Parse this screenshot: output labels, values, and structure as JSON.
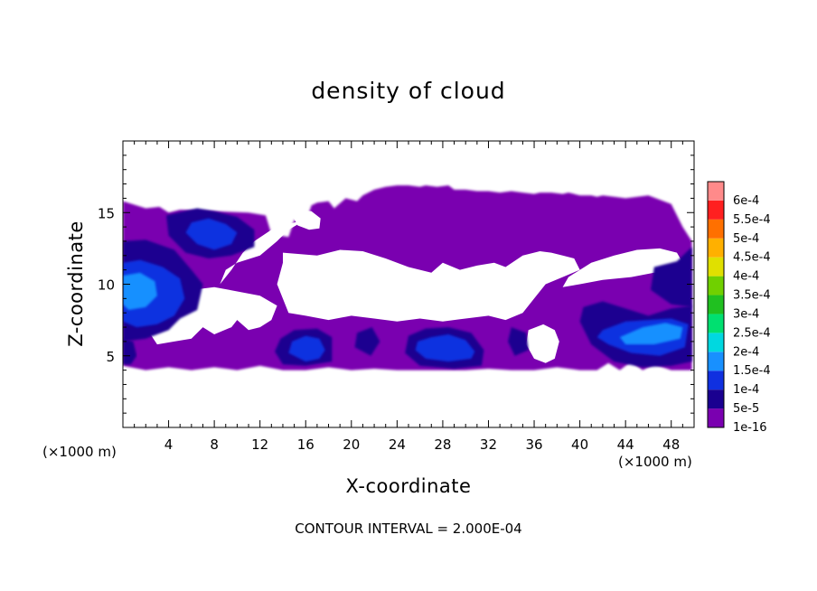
{
  "chart_data": {
    "type": "heatmap",
    "title": "density of cloud",
    "xlabel": "X-coordinate",
    "ylabel": "Z-coordinate",
    "x_unit_label": "(×1000 m)",
    "footer": "CONTOUR INTERVAL = 2.000E-04",
    "xlim": [
      0,
      50
    ],
    "ylim": [
      0,
      20
    ],
    "x_ticks": [
      4,
      8,
      12,
      16,
      20,
      24,
      28,
      32,
      36,
      40,
      44,
      48
    ],
    "y_ticks": [
      5,
      10,
      15
    ],
    "colorbar": {
      "levels": [
        "1e-16",
        "5e-5",
        "1e-4",
        "1.5e-4",
        "2e-4",
        "2.5e-4",
        "3e-4",
        "3.5e-4",
        "4e-4",
        "4.5e-4",
        "5e-4",
        "5.5e-4",
        "6e-4"
      ],
      "colors": [
        "#7a00b0",
        "#1a0090",
        "#1030e0",
        "#1890ff",
        "#00d8e0",
        "#00e070",
        "#20c020",
        "#70d000",
        "#e0e000",
        "#ffb000",
        "#ff7000",
        "#ff2020",
        "#ff8a8a"
      ]
    },
    "regions": [
      {
        "level": "1e-16",
        "x": [
          0.0,
          2.0,
          3.2,
          4.0,
          5.0,
          8.0,
          11.0,
          12.5,
          13.0,
          14.5,
          15.0,
          16.0,
          16.5,
          17.0,
          18.0,
          18.5,
          19.5,
          20.5,
          21.0,
          22.0,
          23.0,
          24.0,
          25.0,
          26.0,
          26.5,
          27.5,
          28.5,
          29.0,
          30.0,
          31.0,
          32.0,
          33.0,
          34.0,
          35.0,
          36.0,
          36.5,
          37.5,
          38.5,
          39.0,
          40.0,
          41.0,
          41.5,
          42.0,
          43.0,
          44.0,
          46.0,
          48.0,
          49.0,
          49.8,
          49.8,
          48.0,
          46.5,
          45.5,
          44.5,
          43.5,
          42.5,
          41.5,
          40.0,
          38.0,
          36.0,
          34.0,
          32.0,
          30.0,
          28.0,
          26.0,
          24.0,
          22.0,
          20.0,
          18.0,
          16.0,
          14.0,
          12.0,
          10.0,
          8.0,
          6.0,
          4.0,
          2.0,
          0.0
        ],
        "y": [
          15.8,
          15.3,
          15.4,
          15.0,
          15.2,
          15.1,
          15.0,
          14.8,
          13.5,
          13.3,
          14.5,
          14.3,
          15.5,
          15.7,
          15.8,
          15.3,
          16.0,
          15.8,
          16.2,
          16.6,
          16.8,
          16.9,
          16.9,
          16.8,
          16.9,
          16.8,
          16.9,
          16.6,
          16.6,
          16.5,
          16.5,
          16.4,
          16.5,
          16.4,
          16.3,
          16.4,
          16.4,
          16.3,
          16.4,
          16.2,
          16.2,
          16.1,
          16.2,
          16.1,
          16.0,
          16.2,
          15.6,
          14.0,
          13.0,
          4.0,
          4.0,
          4.4,
          4.0,
          4.6,
          4.0,
          4.5,
          4.0,
          4.0,
          4.2,
          4.0,
          4.0,
          4.1,
          4.0,
          4.0,
          4.0,
          4.0,
          4.1,
          4.0,
          4.2,
          4.0,
          4.0,
          4.3,
          4.0,
          4.2,
          4.0,
          4.2,
          4.0,
          4.3
        ]
      },
      {
        "level": "white",
        "x": [
          2.0,
          5.0,
          8.0,
          12.0,
          13.5,
          13.0,
          12.0,
          11.0,
          10.0,
          9.5,
          8.0,
          7.0,
          6.0,
          4.5,
          3.0,
          2.0
        ],
        "y": [
          9.0,
          9.5,
          9.8,
          9.2,
          8.5,
          7.5,
          7.0,
          6.8,
          7.5,
          7.0,
          6.5,
          7.0,
          6.2,
          6.0,
          5.8,
          7.0
        ]
      },
      {
        "level": "white",
        "x": [
          10.0,
          12.0,
          13.5,
          14.5,
          16.0,
          14.5,
          13.0,
          11.5,
          10.5,
          9.5,
          8.5,
          9.0
        ],
        "y": [
          11.5,
          12.0,
          13.0,
          13.8,
          14.5,
          14.2,
          13.8,
          13.0,
          12.2,
          11.0,
          10.0,
          11.0
        ]
      },
      {
        "level": "white",
        "x": [
          14.0,
          17.0,
          19.0,
          21.0,
          23.0,
          25.0,
          27.0,
          28.0,
          29.5,
          31.0,
          32.5,
          33.5,
          35.0,
          36.5,
          37.5,
          38.5,
          39.5,
          40.0,
          38.5,
          37.0,
          36.0,
          35.0,
          33.5,
          32.0,
          30.0,
          28.0,
          26.0,
          24.0,
          22.0,
          20.0,
          18.0,
          16.0,
          14.5,
          13.5,
          14.0
        ],
        "y": [
          12.2,
          12.0,
          12.4,
          12.3,
          11.8,
          11.2,
          10.8,
          11.5,
          11.0,
          11.3,
          11.5,
          11.2,
          12.0,
          12.3,
          12.2,
          12.0,
          11.8,
          11.0,
          10.5,
          10.0,
          9.0,
          8.0,
          7.5,
          7.8,
          7.6,
          7.4,
          7.6,
          7.4,
          7.6,
          7.8,
          7.5,
          7.8,
          8.0,
          10.0,
          11.5
        ]
      },
      {
        "level": "white",
        "x": [
          20.5,
          23.5,
          27.0,
          29.0,
          31.0,
          33.0,
          34.0,
          32.0,
          30.0,
          28.0,
          27.0,
          25.0,
          23.0,
          21.0,
          19.5,
          19.0
        ],
        "y": [
          11.0,
          10.8,
          10.0,
          10.2,
          10.8,
          10.5,
          9.0,
          8.2,
          8.0,
          8.4,
          9.4,
          9.0,
          9.0,
          8.8,
          9.2,
          10.2
        ]
      },
      {
        "level": "white",
        "x": [
          39.0,
          41.0,
          43.0,
          45.0,
          47.0,
          48.5,
          49.0,
          48.0,
          46.5,
          44.5,
          42.0,
          40.0,
          38.5
        ],
        "y": [
          10.5,
          11.5,
          12.0,
          12.4,
          12.5,
          12.2,
          11.5,
          10.5,
          10.8,
          10.5,
          10.3,
          10.0,
          9.8
        ]
      },
      {
        "level": "white",
        "x": [
          35.5,
          36.8,
          37.8,
          38.2,
          37.8,
          37.0,
          36.0,
          35.3
        ],
        "y": [
          6.8,
          7.2,
          6.8,
          6.0,
          4.8,
          4.5,
          4.8,
          5.8
        ]
      },
      {
        "level": "white",
        "x": [
          15.3,
          16.5,
          17.3,
          17.2,
          16.3,
          15.3,
          14.9
        ],
        "y": [
          15.2,
          15.1,
          14.6,
          13.9,
          13.8,
          14.1,
          14.7
        ]
      },
      {
        "level": "white",
        "x": [
          31.0,
          32.5,
          33.2,
          32.6,
          31.3,
          30.6
        ],
        "y": [
          9.6,
          9.8,
          9.2,
          8.4,
          8.5,
          9.0
        ]
      },
      {
        "level": "5e-5",
        "x": [
          0.0,
          2.0,
          4.5,
          6.0,
          7.0,
          6.5,
          5.0,
          4.0,
          2.0,
          0.0
        ],
        "y": [
          13.0,
          13.1,
          12.4,
          11.0,
          10.0,
          8.2,
          7.6,
          6.8,
          6.2,
          6.0
        ]
      },
      {
        "level": "5e-5",
        "x": [
          3.8,
          6.5,
          8.0,
          10.0,
          11.5,
          11.5,
          9.5,
          7.5,
          5.5,
          4.0
        ],
        "y": [
          14.8,
          15.3,
          15.1,
          14.7,
          13.8,
          12.6,
          12.0,
          11.8,
          12.2,
          13.4
        ]
      },
      {
        "level": "5e-5",
        "x": [
          13.8,
          15.0,
          17.0,
          18.3,
          18.3,
          16.0,
          14.0,
          13.3
        ],
        "y": [
          6.2,
          6.8,
          6.9,
          6.3,
          4.6,
          4.3,
          4.4,
          5.3
        ]
      },
      {
        "level": "5e-5",
        "x": [
          25.0,
          26.5,
          28.5,
          30.5,
          31.6,
          31.4,
          29.0,
          26.0,
          24.7
        ],
        "y": [
          6.4,
          6.9,
          7.0,
          6.6,
          5.4,
          4.3,
          4.1,
          4.3,
          5.2
        ]
      },
      {
        "level": "5e-5",
        "x": [
          40.3,
          42.0,
          44.0,
          46.0,
          48.0,
          49.8,
          49.8,
          48.0,
          45.5,
          43.0,
          41.0,
          40.0
        ],
        "y": [
          8.4,
          8.8,
          8.3,
          7.8,
          8.3,
          8.5,
          4.6,
          4.3,
          4.2,
          4.6,
          5.8,
          7.4
        ]
      },
      {
        "level": "5e-5",
        "x": [
          46.5,
          48.5,
          49.8,
          49.8,
          48.0,
          46.2
        ],
        "y": [
          11.2,
          11.6,
          12.6,
          8.4,
          8.6,
          9.6
        ]
      },
      {
        "level": "5e-5",
        "x": [
          0.0,
          0.9,
          1.2,
          0.7,
          0.0
        ],
        "y": [
          6.2,
          6.0,
          5.0,
          4.4,
          4.4
        ]
      },
      {
        "level": "5e-5",
        "x": [
          20.5,
          21.8,
          22.5,
          21.7,
          20.3
        ],
        "y": [
          6.6,
          7.0,
          6.0,
          5.0,
          5.6
        ]
      },
      {
        "level": "5e-5",
        "x": [
          34.0,
          35.3,
          35.5,
          34.3,
          33.7
        ],
        "y": [
          7.0,
          6.6,
          5.4,
          5.0,
          6.0
        ]
      },
      {
        "level": "1e-4",
        "x": [
          0.0,
          1.5,
          3.5,
          5.0,
          5.4,
          4.5,
          3.0,
          1.2,
          0.0
        ],
        "y": [
          11.5,
          11.7,
          11.2,
          10.4,
          9.0,
          7.8,
          7.2,
          7.0,
          7.4
        ]
      },
      {
        "level": "1e-4",
        "x": [
          6.0,
          7.5,
          9.0,
          10.0,
          9.5,
          8.0,
          6.5,
          5.5
        ],
        "y": [
          14.3,
          14.6,
          14.2,
          13.6,
          12.8,
          12.4,
          12.8,
          13.6
        ]
      },
      {
        "level": "1e-4",
        "x": [
          14.8,
          16.0,
          17.2,
          17.7,
          17.2,
          16.0,
          14.5
        ],
        "y": [
          6.0,
          6.4,
          6.2,
          5.4,
          4.8,
          4.6,
          5.2
        ]
      },
      {
        "level": "1e-4",
        "x": [
          25.8,
          27.0,
          28.5,
          30.0,
          30.8,
          30.5,
          28.5,
          26.5,
          25.6
        ],
        "y": [
          6.0,
          6.3,
          6.5,
          6.1,
          5.3,
          4.8,
          4.6,
          4.8,
          5.4
        ]
      },
      {
        "level": "1e-4",
        "x": [
          42.0,
          44.0,
          46.0,
          48.0,
          49.5,
          49.2,
          47.0,
          44.5,
          42.5,
          41.5
        ],
        "y": [
          6.8,
          7.4,
          7.5,
          7.6,
          7.2,
          5.6,
          5.0,
          5.2,
          5.8,
          6.3
        ]
      },
      {
        "level": "1.5e-4",
        "x": [
          0.0,
          1.5,
          2.8,
          3.0,
          2.0,
          0.5,
          0.0
        ],
        "y": [
          10.6,
          10.8,
          10.2,
          9.2,
          8.4,
          8.2,
          8.6
        ]
      },
      {
        "level": "1.5e-4",
        "x": [
          43.5,
          45.5,
          47.5,
          49.0,
          48.8,
          46.5,
          44.0
        ],
        "y": [
          6.3,
          7.0,
          7.3,
          7.0,
          6.2,
          5.8,
          5.8
        ]
      }
    ]
  }
}
